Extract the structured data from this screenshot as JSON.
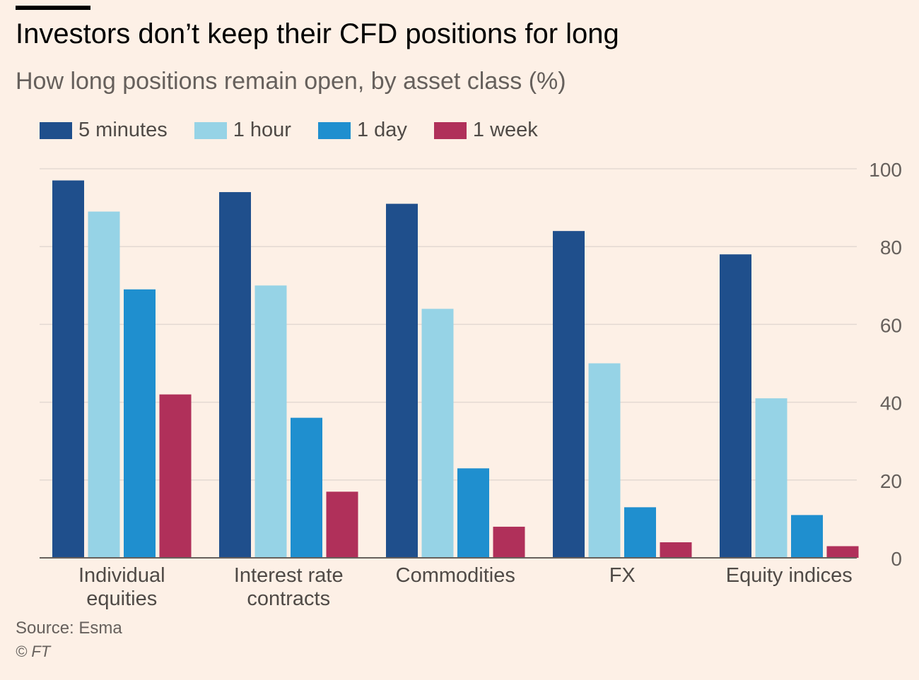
{
  "title": "Investors don’t keep their CFD positions for long",
  "subtitle": "How long positions remain open, by asset class (%)",
  "source": "Source: Esma",
  "credit": "© FT",
  "colors": {
    "background": "#fdf0e6",
    "gridline": "#e3d9d2",
    "axis": "#66605c"
  },
  "chart_data": {
    "type": "bar",
    "title": "Investors don’t keep their CFD positions for long",
    "subtitle": "How long positions remain open, by asset class (%)",
    "categories": [
      [
        "Individual",
        "equities"
      ],
      [
        "Interest rate",
        "contracts"
      ],
      [
        "Commodities"
      ],
      [
        "FX"
      ],
      [
        "Equity indices"
      ]
    ],
    "series": [
      {
        "name": "5 minutes",
        "color": "#1f4f8c",
        "values": [
          97,
          94,
          91,
          84,
          78
        ]
      },
      {
        "name": "1 hour",
        "color": "#96d3e6",
        "values": [
          89,
          70,
          64,
          50,
          41
        ]
      },
      {
        "name": "1 day",
        "color": "#1f8fcf",
        "values": [
          69,
          36,
          23,
          13,
          11
        ]
      },
      {
        "name": "1 week",
        "color": "#b0305a",
        "values": [
          42,
          17,
          8,
          4,
          3
        ]
      }
    ],
    "yticks": [
      0,
      20,
      40,
      60,
      80,
      100
    ],
    "ylim": [
      0,
      100
    ],
    "yaxis_position": "right",
    "grid": true,
    "legend_position": "top-left",
    "xlabel": "",
    "ylabel": ""
  }
}
